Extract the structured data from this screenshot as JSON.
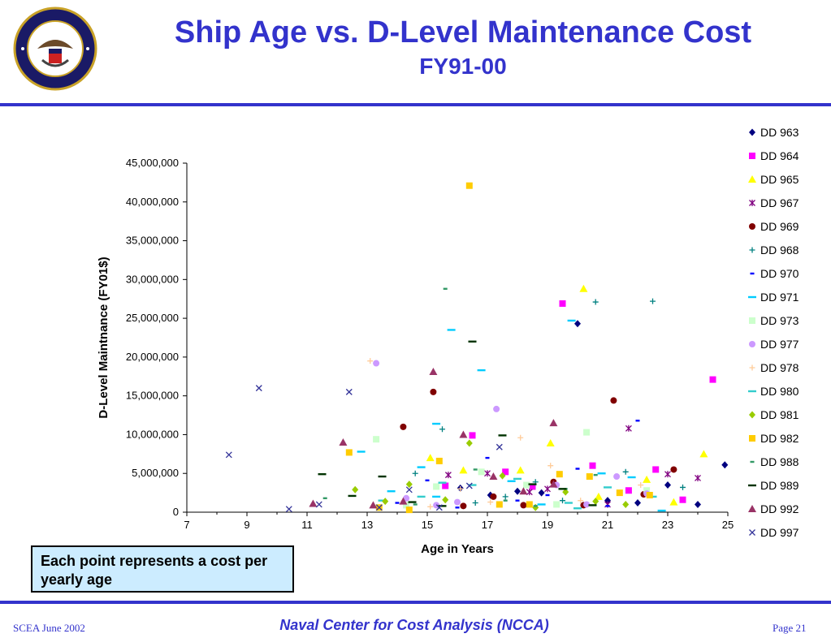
{
  "slide": {
    "title": "Ship Age vs. D-Level Maintenance Cost",
    "subtitle": "FY91-00",
    "note": "Each point represents a cost per yearly age",
    "footer_left": "SCEA June 2002",
    "footer_center": "Naval Center for Cost Analysis (NCCA)",
    "footer_right": "Page 21",
    "seal_text": "DEPARTMENT OF THE NAVY · CENTER FOR COST ANALYSIS",
    "colors": {
      "title": "#3333cc",
      "rule": "#3333cc",
      "note_bg": "#ccecff"
    }
  },
  "chart_data": {
    "type": "scatter",
    "xlabel": "Age in Years",
    "ylabel": "D-Level Maintnance (FY01$)",
    "xlim": [
      7,
      25
    ],
    "ylim": [
      0,
      45000000
    ],
    "x_ticks": [
      7,
      9,
      11,
      13,
      15,
      17,
      19,
      21,
      23,
      25
    ],
    "y_ticks": [
      0,
      5000000,
      10000000,
      15000000,
      20000000,
      25000000,
      30000000,
      35000000,
      40000000,
      45000000
    ],
    "x_tick_labels": [
      "7",
      "9",
      "11",
      "13",
      "15",
      "17",
      "19",
      "21",
      "23",
      "25"
    ],
    "y_tick_labels": [
      "0",
      "5,000,000",
      "10,000,000",
      "15,000,000",
      "20,000,000",
      "25,000,000",
      "30,000,000",
      "35,000,000",
      "40,000,000",
      "45,000,000"
    ],
    "legend_position": "right",
    "grid": false,
    "series": [
      {
        "name": "DD 963",
        "marker": "diamond",
        "color": "#000080",
        "points": [
          [
            20.0,
            24300000
          ],
          [
            24.9,
            6100000
          ],
          [
            23.0,
            3500000
          ],
          [
            18.8,
            2500000
          ],
          [
            17.1,
            2200000
          ],
          [
            22.0,
            1200000
          ],
          [
            16.1,
            3100000
          ],
          [
            21.0,
            1500000
          ],
          [
            18.0,
            2700000
          ],
          [
            24.0,
            1000000
          ]
        ]
      },
      {
        "name": "DD 964",
        "marker": "square",
        "color": "#ff00ff",
        "points": [
          [
            19.5,
            26900000
          ],
          [
            24.5,
            17100000
          ],
          [
            16.5,
            9900000
          ],
          [
            20.5,
            6000000
          ],
          [
            22.6,
            5500000
          ],
          [
            17.6,
            5200000
          ],
          [
            15.6,
            3400000
          ],
          [
            21.7,
            2800000
          ],
          [
            23.5,
            1600000
          ],
          [
            18.5,
            3300000
          ]
        ]
      },
      {
        "name": "DD 965",
        "marker": "triangle",
        "color": "#ffff00",
        "points": [
          [
            20.2,
            28800000
          ],
          [
            24.2,
            7500000
          ],
          [
            19.1,
            8900000
          ],
          [
            15.1,
            7000000
          ],
          [
            16.2,
            5400000
          ],
          [
            18.1,
            5400000
          ],
          [
            22.3,
            4200000
          ],
          [
            23.2,
            1300000
          ],
          [
            20.7,
            2000000
          ]
        ]
      },
      {
        "name": "DD 967",
        "marker": "star",
        "color": "#800080",
        "points": [
          [
            21.7,
            10800000
          ],
          [
            15.7,
            4800000
          ],
          [
            17.0,
            5000000
          ],
          [
            23.0,
            4900000
          ],
          [
            24.0,
            4400000
          ],
          [
            19.0,
            3000000
          ],
          [
            21.0,
            1000000
          ],
          [
            18.4,
            2600000
          ]
        ]
      },
      {
        "name": "DD 969",
        "marker": "circle",
        "color": "#800000",
        "points": [
          [
            15.2,
            15500000
          ],
          [
            21.2,
            14400000
          ],
          [
            14.2,
            11000000
          ],
          [
            23.2,
            5500000
          ],
          [
            17.2,
            2000000
          ],
          [
            19.2,
            3900000
          ],
          [
            16.2,
            800000
          ],
          [
            22.2,
            2300000
          ],
          [
            18.2,
            900000
          ],
          [
            20.2,
            900000
          ]
        ]
      },
      {
        "name": "DD 968",
        "marker": "plus",
        "color": "#008080",
        "points": [
          [
            20.6,
            27100000
          ],
          [
            22.5,
            27200000
          ],
          [
            15.5,
            10700000
          ],
          [
            14.6,
            5000000
          ],
          [
            21.6,
            5200000
          ],
          [
            18.6,
            3900000
          ],
          [
            16.6,
            1200000
          ],
          [
            23.5,
            3200000
          ],
          [
            19.5,
            1500000
          ],
          [
            17.6,
            2000000
          ]
        ]
      },
      {
        "name": "DD 970",
        "marker": "dash",
        "color": "#0000ff",
        "points": [
          [
            22.0,
            11800000
          ],
          [
            17.0,
            7000000
          ],
          [
            20.0,
            5600000
          ],
          [
            15.0,
            4100000
          ],
          [
            18.0,
            1500000
          ],
          [
            21.0,
            800000
          ],
          [
            16.0,
            600000
          ],
          [
            19.0,
            2200000
          ],
          [
            14.0,
            1200000
          ]
        ]
      },
      {
        "name": "DD 971",
        "marker": "hbar",
        "color": "#00ccff",
        "points": [
          [
            15.8,
            23500000
          ],
          [
            19.8,
            24700000
          ],
          [
            16.8,
            18300000
          ],
          [
            12.8,
            7800000
          ],
          [
            15.3,
            11400000
          ],
          [
            13.8,
            2700000
          ],
          [
            14.8,
            5800000
          ],
          [
            20.8,
            5000000
          ],
          [
            17.8,
            4000000
          ],
          [
            21.8,
            4500000
          ],
          [
            22.8,
            200000
          ],
          [
            18.8,
            1000000
          ],
          [
            15.3,
            2000000
          ]
        ]
      },
      {
        "name": "DD 973",
        "marker": "square",
        "color": "#ccffcc",
        "points": [
          [
            13.3,
            9400000
          ],
          [
            20.3,
            10300000
          ],
          [
            15.3,
            3300000
          ],
          [
            18.3,
            3500000
          ],
          [
            22.3,
            2800000
          ],
          [
            16.8,
            5200000
          ],
          [
            19.3,
            1000000
          ],
          [
            14.3,
            900000
          ]
        ]
      },
      {
        "name": "DD 977",
        "marker": "circle",
        "color": "#cc99ff",
        "points": [
          [
            13.3,
            19200000
          ],
          [
            17.3,
            13300000
          ],
          [
            21.3,
            4600000
          ],
          [
            16.0,
            1300000
          ],
          [
            19.3,
            3500000
          ],
          [
            14.3,
            1800000
          ],
          [
            15.3,
            900000
          ],
          [
            20.3,
            1000000
          ],
          [
            22.3,
            2400000
          ]
        ]
      },
      {
        "name": "DD 978",
        "marker": "plus",
        "color": "#ffcc99",
        "points": [
          [
            13.1,
            19500000
          ],
          [
            18.1,
            9600000
          ],
          [
            19.1,
            6000000
          ],
          [
            15.1,
            700000
          ],
          [
            20.1,
            1500000
          ],
          [
            16.1,
            3000000
          ],
          [
            22.1,
            3500000
          ],
          [
            17.1,
            1300000
          ]
        ]
      },
      {
        "name": "DD 980",
        "marker": "hbar",
        "color": "#33cccc",
        "points": [
          [
            15.5,
            3800000
          ],
          [
            18.0,
            4300000
          ],
          [
            14.8,
            2000000
          ],
          [
            19.7,
            1200000
          ],
          [
            21.0,
            3200000
          ],
          [
            16.5,
            3500000
          ],
          [
            13.5,
            1500000
          ],
          [
            22.5,
            2000000
          ],
          [
            20.0,
            500000
          ]
        ]
      },
      {
        "name": "DD 981",
        "marker": "diamond",
        "color": "#99cc00",
        "points": [
          [
            16.4,
            8900000
          ],
          [
            14.4,
            3600000
          ],
          [
            17.5,
            4700000
          ],
          [
            12.6,
            2900000
          ],
          [
            19.6,
            2600000
          ],
          [
            15.6,
            1600000
          ],
          [
            18.6,
            600000
          ],
          [
            20.6,
            1400000
          ],
          [
            21.6,
            1000000
          ],
          [
            13.6,
            1400000
          ]
        ]
      },
      {
        "name": "DD 982",
        "marker": "square",
        "color": "#ffcc00",
        "points": [
          [
            16.4,
            42100000
          ],
          [
            12.4,
            7700000
          ],
          [
            15.4,
            6600000
          ],
          [
            19.4,
            4900000
          ],
          [
            20.4,
            4600000
          ],
          [
            17.4,
            1000000
          ],
          [
            13.4,
            600000
          ],
          [
            21.4,
            2500000
          ],
          [
            18.4,
            1000000
          ],
          [
            14.4,
            300000
          ],
          [
            22.4,
            2200000
          ]
        ]
      },
      {
        "name": "DD 988",
        "marker": "dash",
        "color": "#339966",
        "points": [
          [
            15.6,
            28800000
          ],
          [
            11.6,
            1800000
          ],
          [
            16.6,
            5500000
          ],
          [
            17.6,
            1500000
          ],
          [
            18.6,
            800000
          ],
          [
            20.6,
            4800000
          ],
          [
            14.6,
            1000000
          ],
          [
            19.6,
            3000000
          ]
        ]
      },
      {
        "name": "DD 989",
        "marker": "hbar",
        "color": "#003300",
        "points": [
          [
            16.5,
            22000000
          ],
          [
            17.5,
            9900000
          ],
          [
            11.5,
            4900000
          ],
          [
            13.5,
            4600000
          ],
          [
            12.5,
            2100000
          ],
          [
            14.5,
            1300000
          ],
          [
            19.5,
            3000000
          ],
          [
            15.5,
            800000
          ],
          [
            18.5,
            3600000
          ],
          [
            20.5,
            900000
          ]
        ]
      },
      {
        "name": "DD 992",
        "marker": "triangle",
        "color": "#993366",
        "points": [
          [
            15.2,
            18100000
          ],
          [
            16.2,
            10000000
          ],
          [
            19.2,
            11500000
          ],
          [
            12.2,
            9000000
          ],
          [
            17.2,
            4600000
          ],
          [
            11.2,
            1100000
          ],
          [
            13.2,
            900000
          ],
          [
            14.2,
            1400000
          ],
          [
            18.2,
            2700000
          ],
          [
            19.2,
            3600000
          ]
        ]
      },
      {
        "name": "DD 997",
        "marker": "x",
        "color": "#333399",
        "points": [
          [
            9.4,
            16000000
          ],
          [
            12.4,
            15500000
          ],
          [
            8.4,
            7400000
          ],
          [
            10.4,
            400000
          ],
          [
            11.4,
            1000000
          ],
          [
            14.4,
            2900000
          ],
          [
            13.4,
            600000
          ],
          [
            15.4,
            600000
          ],
          [
            16.4,
            3400000
          ],
          [
            17.4,
            8400000
          ]
        ]
      }
    ]
  }
}
